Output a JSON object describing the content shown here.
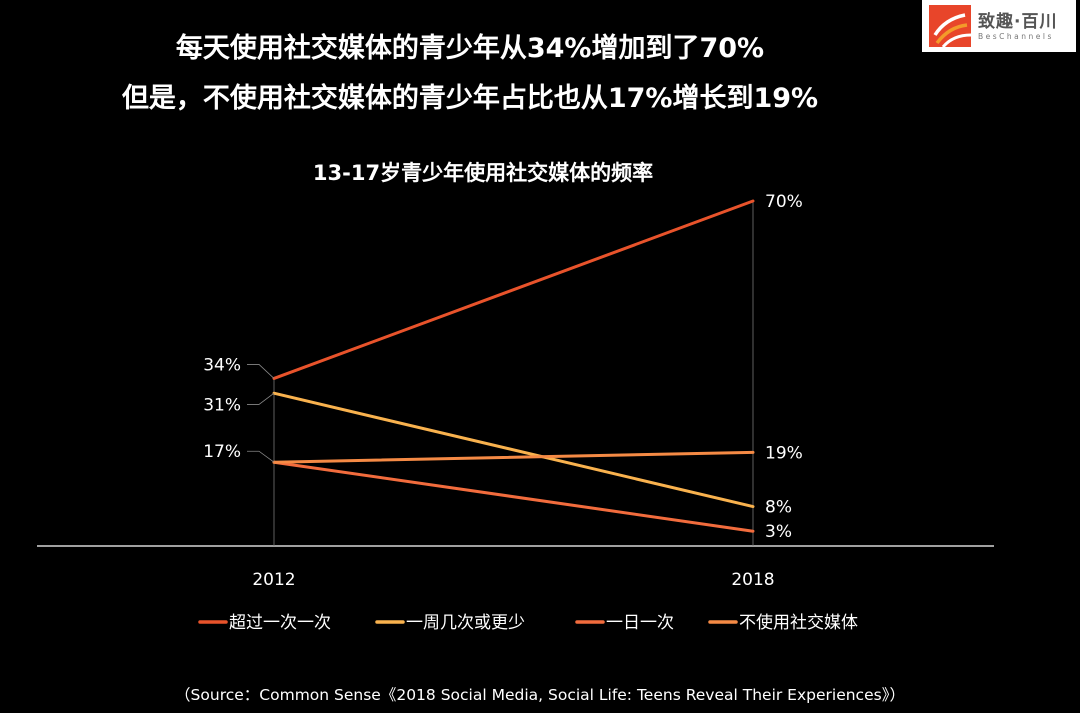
{
  "headline": {
    "line1": "每天使用社交媒体的青少年从34%增加到了70%",
    "line2": "但是，不使用社交媒体的青少年占比也从17%增长到19%"
  },
  "logo": {
    "name": "致趣·百川",
    "subtitle": "BesChannels",
    "colors": [
      "#e8452a",
      "#f39a2a"
    ]
  },
  "chart_data": {
    "type": "line",
    "title": "13-17岁青少年使用社交媒体的频率",
    "x": [
      "2012",
      "2018"
    ],
    "ylim": [
      0,
      70
    ],
    "grid": false,
    "legend_position": "bottom",
    "series": [
      {
        "name": "超过一次一次",
        "values": [
          34,
          70
        ],
        "labels": [
          "34%",
          "70%"
        ],
        "color": "#e8532b"
      },
      {
        "name": "一周几次或更少",
        "values": [
          31,
          8
        ],
        "labels": [
          "31%",
          "8%"
        ],
        "color": "#f9b24e"
      },
      {
        "name": "一日一次",
        "values": [
          17,
          3
        ],
        "labels": [
          "17%",
          "3%"
        ],
        "color": "#f26c3d"
      },
      {
        "name": "不使用社交媒体",
        "values": [
          17,
          19
        ],
        "labels": [
          "17%",
          "19%"
        ],
        "color": "#f58a45"
      }
    ]
  },
  "source": "（Source：Common Sense《2018 Social Media, Social Life: Teens Reveal Their Experiences》）"
}
